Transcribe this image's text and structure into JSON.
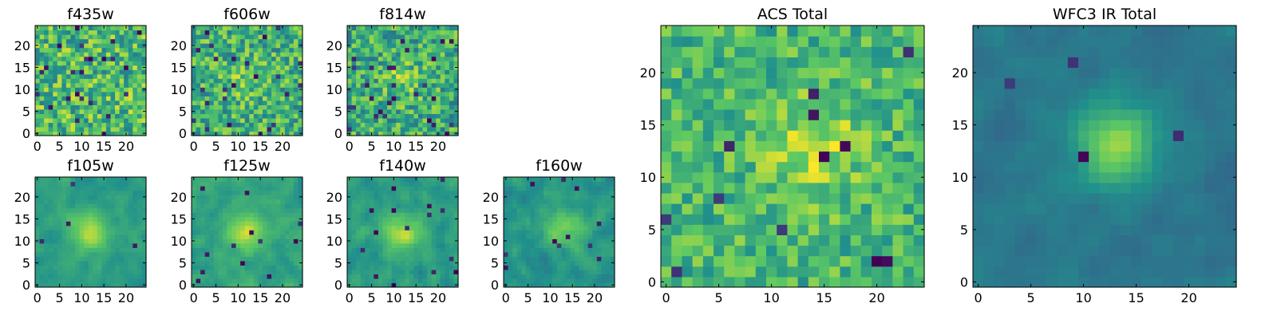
{
  "colormap": [
    "#440154",
    "#3b528b",
    "#21918c",
    "#5ec962",
    "#fde725"
  ],
  "chart_data": [
    {
      "type": "heatmap",
      "title": "f435w",
      "grid_size": 25,
      "xlim": [
        0,
        24
      ],
      "ylim": [
        0,
        24
      ],
      "xticks": [
        "0",
        "5",
        "10",
        "15",
        "20"
      ],
      "yticks": [
        "0",
        "5",
        "10",
        "15",
        "20"
      ],
      "seed": 11,
      "peak": [
        12,
        12
      ],
      "signal": 0.0,
      "sigma": 3.0,
      "noise": 0.26,
      "base": 0.68,
      "dark_fraction": 0.04
    },
    {
      "type": "heatmap",
      "title": "f606w",
      "grid_size": 25,
      "xlim": [
        0,
        24
      ],
      "ylim": [
        0,
        24
      ],
      "xticks": [
        "0",
        "5",
        "10",
        "15",
        "20"
      ],
      "yticks": [
        "0",
        "5",
        "10",
        "15",
        "20"
      ],
      "seed": 23,
      "peak": [
        12,
        12
      ],
      "signal": 0.12,
      "sigma": 3.0,
      "noise": 0.24,
      "base": 0.64,
      "dark_fraction": 0.04
    },
    {
      "type": "heatmap",
      "title": "f814w",
      "grid_size": 25,
      "xlim": [
        0,
        24
      ],
      "ylim": [
        0,
        24
      ],
      "xticks": [
        "0",
        "5",
        "10",
        "15",
        "20"
      ],
      "yticks": [
        "0",
        "5",
        "10",
        "15",
        "20"
      ],
      "seed": 37,
      "peak": [
        12,
        12
      ],
      "signal": 0.16,
      "sigma": 3.0,
      "noise": 0.24,
      "base": 0.62,
      "dark_fraction": 0.04
    },
    {
      "type": "heatmap",
      "title": "f105w",
      "grid_size": 25,
      "xlim": [
        0,
        24
      ],
      "ylim": [
        0,
        24
      ],
      "xticks": [
        "0",
        "5",
        "10",
        "15",
        "20"
      ],
      "yticks": [
        "0",
        "5",
        "10",
        "15",
        "20"
      ],
      "seed": 41,
      "peak": [
        12,
        12
      ],
      "signal": 0.35,
      "sigma": 3.0,
      "noise": 0.14,
      "base": 0.55,
      "dark_fraction": 0.01
    },
    {
      "type": "heatmap",
      "title": "f125w",
      "grid_size": 25,
      "xlim": [
        0,
        24
      ],
      "ylim": [
        0,
        24
      ],
      "xticks": [
        "0",
        "5",
        "10",
        "15",
        "20"
      ],
      "yticks": [
        "0",
        "5",
        "10",
        "15",
        "20"
      ],
      "seed": 53,
      "peak": [
        12,
        12
      ],
      "signal": 0.3,
      "sigma": 3.0,
      "noise": 0.16,
      "base": 0.58,
      "dark_fraction": 0.01
    },
    {
      "type": "heatmap",
      "title": "f140w",
      "grid_size": 25,
      "xlim": [
        0,
        24
      ],
      "ylim": [
        0,
        24
      ],
      "xticks": [
        "0",
        "5",
        "10",
        "15",
        "20"
      ],
      "yticks": [
        "0",
        "5",
        "10",
        "15",
        "20"
      ],
      "seed": 67,
      "peak": [
        12,
        12
      ],
      "signal": 0.3,
      "sigma": 3.0,
      "noise": 0.18,
      "base": 0.55,
      "dark_fraction": 0.015
    },
    {
      "type": "heatmap",
      "title": "f160w",
      "grid_size": 25,
      "xlim": [
        0,
        24
      ],
      "ylim": [
        0,
        24
      ],
      "xticks": [
        "0",
        "5",
        "10",
        "15",
        "20"
      ],
      "yticks": [
        "0",
        "5",
        "10",
        "15",
        "20"
      ],
      "seed": 79,
      "peak": [
        13,
        13
      ],
      "signal": 0.3,
      "sigma": 3.0,
      "noise": 0.18,
      "base": 0.52,
      "dark_fraction": 0.015
    },
    {
      "type": "heatmap",
      "title": "ACS Total",
      "grid_size": 25,
      "xlim": [
        0,
        24
      ],
      "ylim": [
        0,
        24
      ],
      "xticks": [
        "0",
        "5",
        "10",
        "15",
        "20"
      ],
      "yticks": [
        "0",
        "5",
        "10",
        "15",
        "20"
      ],
      "seed": 97,
      "peak": [
        14,
        13
      ],
      "signal": 0.22,
      "sigma": 3.5,
      "noise": 0.18,
      "base": 0.66,
      "dark_fraction": 0.025
    },
    {
      "type": "heatmap",
      "title": "WFC3 IR Total",
      "grid_size": 25,
      "xlim": [
        0,
        24
      ],
      "ylim": [
        0,
        24
      ],
      "xticks": [
        "0",
        "5",
        "10",
        "15",
        "20"
      ],
      "yticks": [
        "0",
        "5",
        "10",
        "15",
        "20"
      ],
      "seed": 113,
      "peak": [
        13,
        13
      ],
      "signal": 0.45,
      "sigma": 2.6,
      "noise": 0.1,
      "base": 0.4,
      "dark_fraction": 0.006
    }
  ]
}
